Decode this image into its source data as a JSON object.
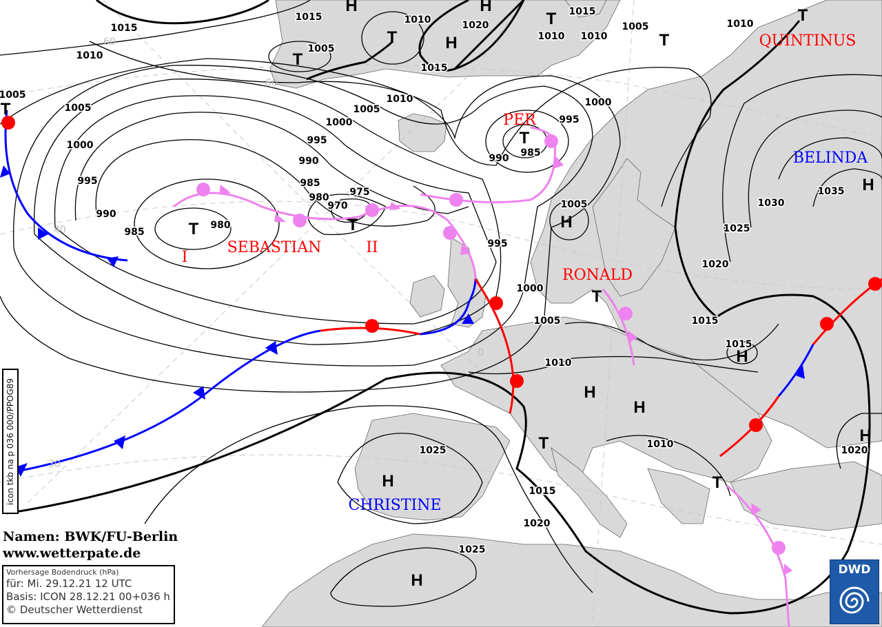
{
  "map": {
    "type": "surface pressure analysis",
    "unit": "hPa",
    "colors": {
      "land": "#d9d9d9",
      "cold_front": "#0000ff",
      "warm_front": "#ff0000",
      "occlusion": "#ee82ee",
      "high_name": "#0000ff",
      "low_name": "#ff0000"
    },
    "isobar_labels": [
      "1015",
      "1010",
      "1005",
      "1005",
      "1000",
      "995",
      "990",
      "985",
      "980",
      "1015",
      "1005",
      "1010",
      "1020",
      "1015",
      "1010",
      "1015",
      "1010",
      "1005",
      "1010",
      "1010",
      "1005",
      "1000",
      "995",
      "990",
      "985",
      "980",
      "975",
      "970",
      "995",
      "1000",
      "990",
      "985",
      "1005",
      "995",
      "1000",
      "1005",
      "1010",
      "1030",
      "1035",
      "1025",
      "1020",
      "1015",
      "1015",
      "1010",
      "1025",
      "1015",
      "1020",
      "1025",
      "1020"
    ],
    "pressure_centers": [
      "T",
      "T",
      "T",
      "H",
      "H",
      "H",
      "T",
      "T",
      "T",
      "T",
      "T",
      "T",
      "H",
      "T",
      "H",
      "H",
      "H",
      "H",
      "T",
      "H",
      "T",
      "H",
      "H"
    ],
    "system_names": [
      {
        "name": "QUINTINUS",
        "type": "low"
      },
      {
        "name": "PER",
        "type": "low"
      },
      {
        "name": "BELINDA",
        "type": "high"
      },
      {
        "name": "SEBASTIAN",
        "type": "low"
      },
      {
        "name": "I",
        "type": "low"
      },
      {
        "name": "II",
        "type": "low"
      },
      {
        "name": "RONALD",
        "type": "low"
      },
      {
        "name": "CHRISTINE",
        "type": "high"
      }
    ],
    "graticule_labels": [
      "60",
      "60",
      "40",
      "30",
      "0"
    ]
  },
  "model_id": "icon tkb na p 036 000/PPOG89",
  "credits": {
    "names": "Namen: BWK/FU-Berlin",
    "url": "www.wetterpate.de"
  },
  "info": {
    "title": "Vorhersage Bodendruck (hPa)",
    "valid": "für:  Mi. 29.12.21  12 UTC",
    "basis": "Basis: ICON  28.12.21 00+036 h",
    "copyright": "© Deutscher Wetterdienst"
  },
  "logo": {
    "text": "DWD"
  }
}
